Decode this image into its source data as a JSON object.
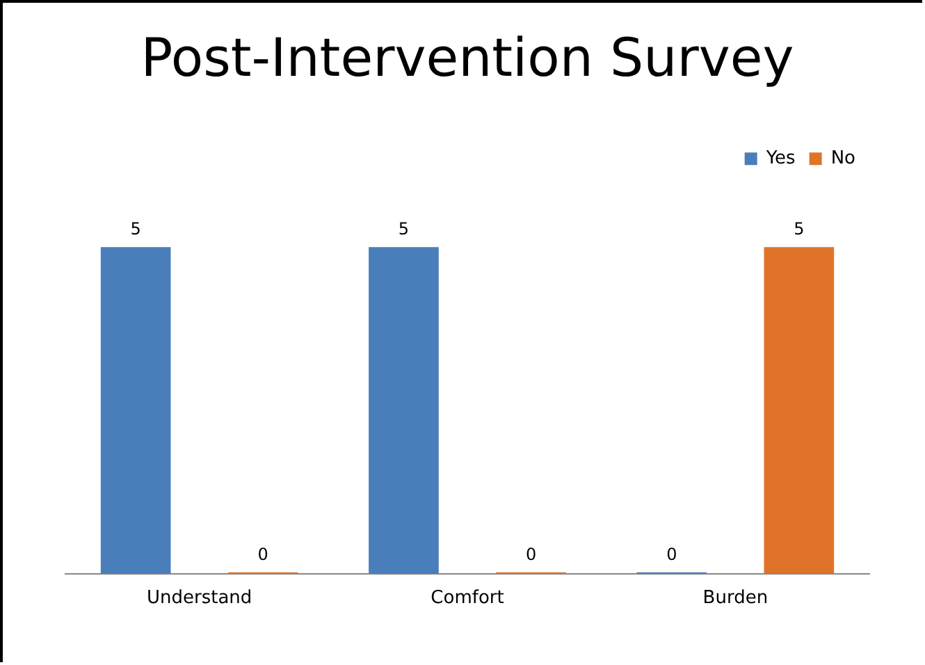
{
  "chart_data": {
    "type": "bar",
    "title": "Post-Intervention Survey",
    "categories": [
      "Understand",
      "Comfort",
      "Burden"
    ],
    "series": [
      {
        "name": "Yes",
        "color": "#4a7ebb",
        "values": [
          5,
          5,
          0
        ]
      },
      {
        "name": "No",
        "color": "#e0732a",
        "values": [
          0,
          0,
          5
        ]
      }
    ],
    "data_labels": true,
    "grid": false,
    "legend": "top right"
  }
}
